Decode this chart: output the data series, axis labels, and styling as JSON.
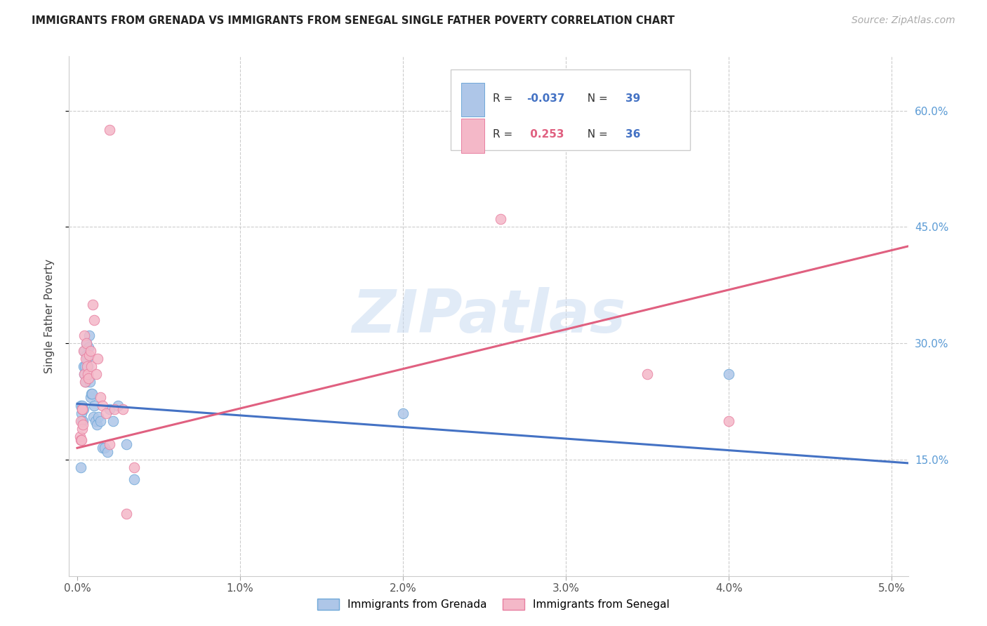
{
  "title": "IMMIGRANTS FROM GRENADA VS IMMIGRANTS FROM SENEGAL SINGLE FATHER POVERTY CORRELATION CHART",
  "source": "Source: ZipAtlas.com",
  "ylabel": "Single Father Poverty",
  "y_ticks_right": [
    0.15,
    0.3,
    0.45,
    0.6
  ],
  "y_tick_labels_right": [
    "15.0%",
    "30.0%",
    "45.0%",
    "60.0%"
  ],
  "x_ticks": [
    0.0,
    0.01,
    0.02,
    0.03,
    0.04,
    0.05
  ],
  "x_tick_labels": [
    "0.0%",
    "1.0%",
    "2.0%",
    "3.0%",
    "4.0%",
    "5.0%"
  ],
  "xlim": [
    -0.0005,
    0.051
  ],
  "ylim": [
    0.0,
    0.67
  ],
  "watermark": "ZIPatlas",
  "dot_size": 110,
  "blue_fill": "#aec6e8",
  "pink_fill": "#f4b8c8",
  "blue_edge": "#6fa8d8",
  "pink_edge": "#e87fa0",
  "trend_blue": "#4472c4",
  "trend_pink": "#e06080",
  "bg_color": "#ffffff",
  "grid_color": "#cccccc",
  "title_color": "#222222",
  "source_color": "#aaaaaa",
  "right_axis_color": "#5b9bd5",
  "legend_r_blue": "#4472c4",
  "legend_r_pink": "#e06080",
  "legend_n_color": "#4472c4",
  "scatter_grenada_x": [
    0.0002,
    0.00022,
    0.00025,
    0.00028,
    0.0003,
    0.00032,
    0.00035,
    0.00038,
    0.0004,
    0.00042,
    0.00045,
    0.00048,
    0.0005,
    0.00055,
    0.00058,
    0.00062,
    0.00065,
    0.00068,
    0.00072,
    0.00078,
    0.00082,
    0.00088,
    0.00092,
    0.00098,
    0.00105,
    0.00112,
    0.0012,
    0.0013,
    0.0014,
    0.00155,
    0.0017,
    0.00185,
    0.002,
    0.0022,
    0.0025,
    0.003,
    0.0035,
    0.02,
    0.04
  ],
  "scatter_grenada_y": [
    0.14,
    0.22,
    0.21,
    0.2,
    0.22,
    0.215,
    0.2,
    0.215,
    0.27,
    0.26,
    0.29,
    0.27,
    0.25,
    0.3,
    0.285,
    0.28,
    0.27,
    0.295,
    0.31,
    0.25,
    0.23,
    0.235,
    0.235,
    0.205,
    0.22,
    0.2,
    0.195,
    0.205,
    0.2,
    0.165,
    0.165,
    0.16,
    0.215,
    0.2,
    0.22,
    0.17,
    0.125,
    0.21,
    0.26
  ],
  "scatter_senegal_x": [
    0.00018,
    0.0002,
    0.00022,
    0.00025,
    0.00028,
    0.0003,
    0.00032,
    0.00035,
    0.00038,
    0.00042,
    0.00045,
    0.00048,
    0.00052,
    0.00055,
    0.0006,
    0.00065,
    0.0007,
    0.00075,
    0.00082,
    0.00088,
    0.00095,
    0.00105,
    0.00115,
    0.00125,
    0.0014,
    0.00155,
    0.00175,
    0.002,
    0.0023,
    0.0028,
    0.0035,
    0.026,
    0.035,
    0.04,
    0.002,
    0.003
  ],
  "scatter_senegal_y": [
    0.18,
    0.175,
    0.2,
    0.175,
    0.19,
    0.215,
    0.215,
    0.195,
    0.29,
    0.31,
    0.26,
    0.25,
    0.28,
    0.3,
    0.27,
    0.26,
    0.255,
    0.285,
    0.29,
    0.27,
    0.35,
    0.33,
    0.26,
    0.28,
    0.23,
    0.22,
    0.21,
    0.17,
    0.215,
    0.215,
    0.14,
    0.46,
    0.26,
    0.2,
    0.575,
    0.08
  ]
}
